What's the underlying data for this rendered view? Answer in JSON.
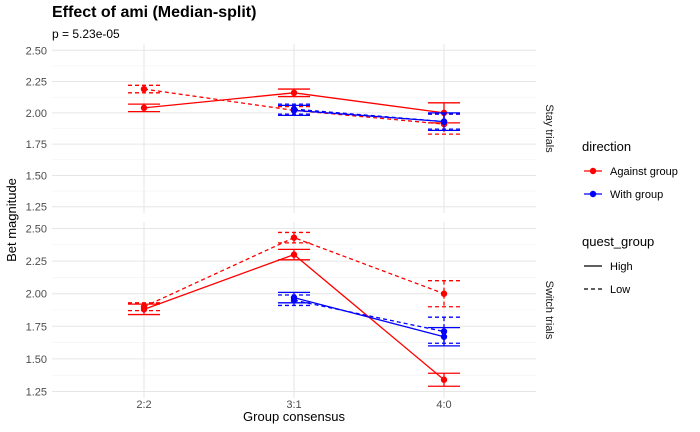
{
  "chart_data": {
    "type": "line",
    "title": "Effect of ami (Median-split)",
    "subtitle": "p = 5.23e-05",
    "xlabel": "Group consensus",
    "ylabel": "Bet magnitude",
    "categories": [
      "2:2",
      "3:1",
      "4:0"
    ],
    "ylim": [
      1.25,
      2.5
    ],
    "yticks": [
      "1.25",
      "1.50",
      "1.75",
      "2.00",
      "2.25",
      "2.50"
    ],
    "grid": true,
    "legend_position": "right",
    "colors": {
      "Against group": "#ff0000",
      "With group": "#0000ff"
    },
    "legend": {
      "color_title": "direction",
      "color_entries": [
        "Against group",
        "With group"
      ],
      "linetype_title": "quest_group",
      "linetype_entries": [
        "High",
        "Low"
      ]
    },
    "panels": [
      {
        "label": "Stay trials",
        "series": [
          {
            "direction": "Against group",
            "quest_group": "High",
            "x": [
              "2:2",
              "3:1",
              "4:0"
            ],
            "y": [
              2.04,
              2.16,
              2.0
            ],
            "lower": [
              2.01,
              2.13,
              1.92
            ],
            "upper": [
              2.07,
              2.19,
              2.08
            ]
          },
          {
            "direction": "Against group",
            "quest_group": "Low",
            "x": [
              "2:2",
              "3:1",
              "4:0"
            ],
            "y": [
              2.19,
              2.02,
              1.91
            ],
            "lower": [
              2.16,
              1.99,
              1.83
            ],
            "upper": [
              2.22,
              2.05,
              1.99
            ]
          },
          {
            "direction": "With group",
            "quest_group": "High",
            "x": [
              "3:1",
              "4:0"
            ],
            "y": [
              2.02,
              1.93
            ],
            "lower": [
              1.98,
              1.86
            ],
            "upper": [
              2.06,
              2.0
            ]
          },
          {
            "direction": "With group",
            "quest_group": "Low",
            "x": [
              "3:1",
              "4:0"
            ],
            "y": [
              2.03,
              1.93
            ],
            "lower": [
              1.99,
              1.87
            ],
            "upper": [
              2.07,
              1.99
            ]
          }
        ]
      },
      {
        "label": "Switch trials",
        "series": [
          {
            "direction": "Against group",
            "quest_group": "High",
            "x": [
              "2:2",
              "3:1",
              "4:0"
            ],
            "y": [
              1.88,
              2.3,
              1.34
            ],
            "lower": [
              1.84,
              2.26,
              1.29
            ],
            "upper": [
              1.92,
              2.34,
              1.39
            ]
          },
          {
            "direction": "Against group",
            "quest_group": "Low",
            "x": [
              "2:2",
              "3:1",
              "4:0"
            ],
            "y": [
              1.9,
              2.43,
              2.0
            ],
            "lower": [
              1.87,
              2.39,
              1.9
            ],
            "upper": [
              1.93,
              2.47,
              2.1
            ]
          },
          {
            "direction": "With group",
            "quest_group": "High",
            "x": [
              "3:1",
              "4:0"
            ],
            "y": [
              1.97,
              1.67
            ],
            "lower": [
              1.93,
              1.6
            ],
            "upper": [
              2.01,
              1.74
            ]
          },
          {
            "direction": "With group",
            "quest_group": "Low",
            "x": [
              "3:1",
              "4:0"
            ],
            "y": [
              1.95,
              1.71
            ],
            "lower": [
              1.91,
              1.62
            ],
            "upper": [
              1.99,
              1.82
            ]
          }
        ]
      }
    ]
  }
}
